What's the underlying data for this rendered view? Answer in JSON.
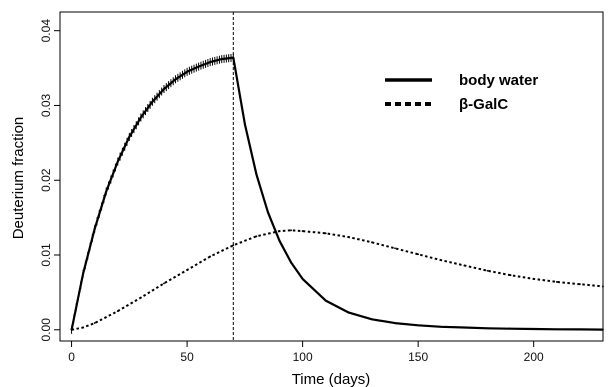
{
  "chart_data": {
    "type": "line",
    "title": "",
    "xlabel": "Time (days)",
    "ylabel": "Deuterium fraction",
    "xlim": [
      -5,
      230
    ],
    "ylim": [
      -0.0015,
      0.0425
    ],
    "x_ticks": [
      0,
      50,
      100,
      150,
      200
    ],
    "x_tick_labels": [
      "0",
      "50",
      "100",
      "150",
      "200"
    ],
    "y_ticks": [
      0.0,
      0.01,
      0.02,
      0.03,
      0.04
    ],
    "y_tick_labels": [
      "0.00",
      "0.01",
      "0.02",
      "0.03",
      "0.04"
    ],
    "grid": false,
    "legend_position": "top-right",
    "vertical_line": {
      "x": 70,
      "style": "dashed"
    },
    "series": [
      {
        "name": "body water",
        "style": "solid",
        "color": "#000000",
        "x": [
          0,
          5,
          10,
          15,
          20,
          25,
          30,
          35,
          40,
          45,
          50,
          55,
          60,
          65,
          70,
          75,
          80,
          85,
          90,
          95,
          100,
          110,
          120,
          130,
          140,
          150,
          160,
          170,
          180,
          190,
          200,
          210,
          220,
          230
        ],
        "y": [
          0.0,
          0.0075,
          0.0135,
          0.0185,
          0.0225,
          0.0258,
          0.0284,
          0.0305,
          0.0322,
          0.0335,
          0.0345,
          0.0352,
          0.0358,
          0.0362,
          0.0364,
          0.0275,
          0.0208,
          0.0157,
          0.0119,
          0.009,
          0.0068,
          0.0039,
          0.0023,
          0.0014,
          0.0009,
          0.0006,
          0.0004,
          0.0003,
          0.0002,
          0.00015,
          0.0001,
          7e-05,
          5e-05,
          3e-05
        ]
      },
      {
        "name": "β-GalC",
        "style": "dotted",
        "color": "#000000",
        "x": [
          0,
          5,
          10,
          20,
          30,
          40,
          50,
          60,
          70,
          80,
          90,
          95,
          100,
          110,
          120,
          130,
          140,
          150,
          160,
          170,
          180,
          190,
          200,
          210,
          220,
          230
        ],
        "y": [
          0.0,
          0.0003,
          0.0009,
          0.0025,
          0.0043,
          0.0062,
          0.008,
          0.0098,
          0.0113,
          0.0125,
          0.0132,
          0.0133,
          0.0132,
          0.0129,
          0.0124,
          0.0117,
          0.0109,
          0.0101,
          0.0093,
          0.0086,
          0.0079,
          0.0073,
          0.0068,
          0.0064,
          0.0061,
          0.0058
        ]
      }
    ]
  }
}
